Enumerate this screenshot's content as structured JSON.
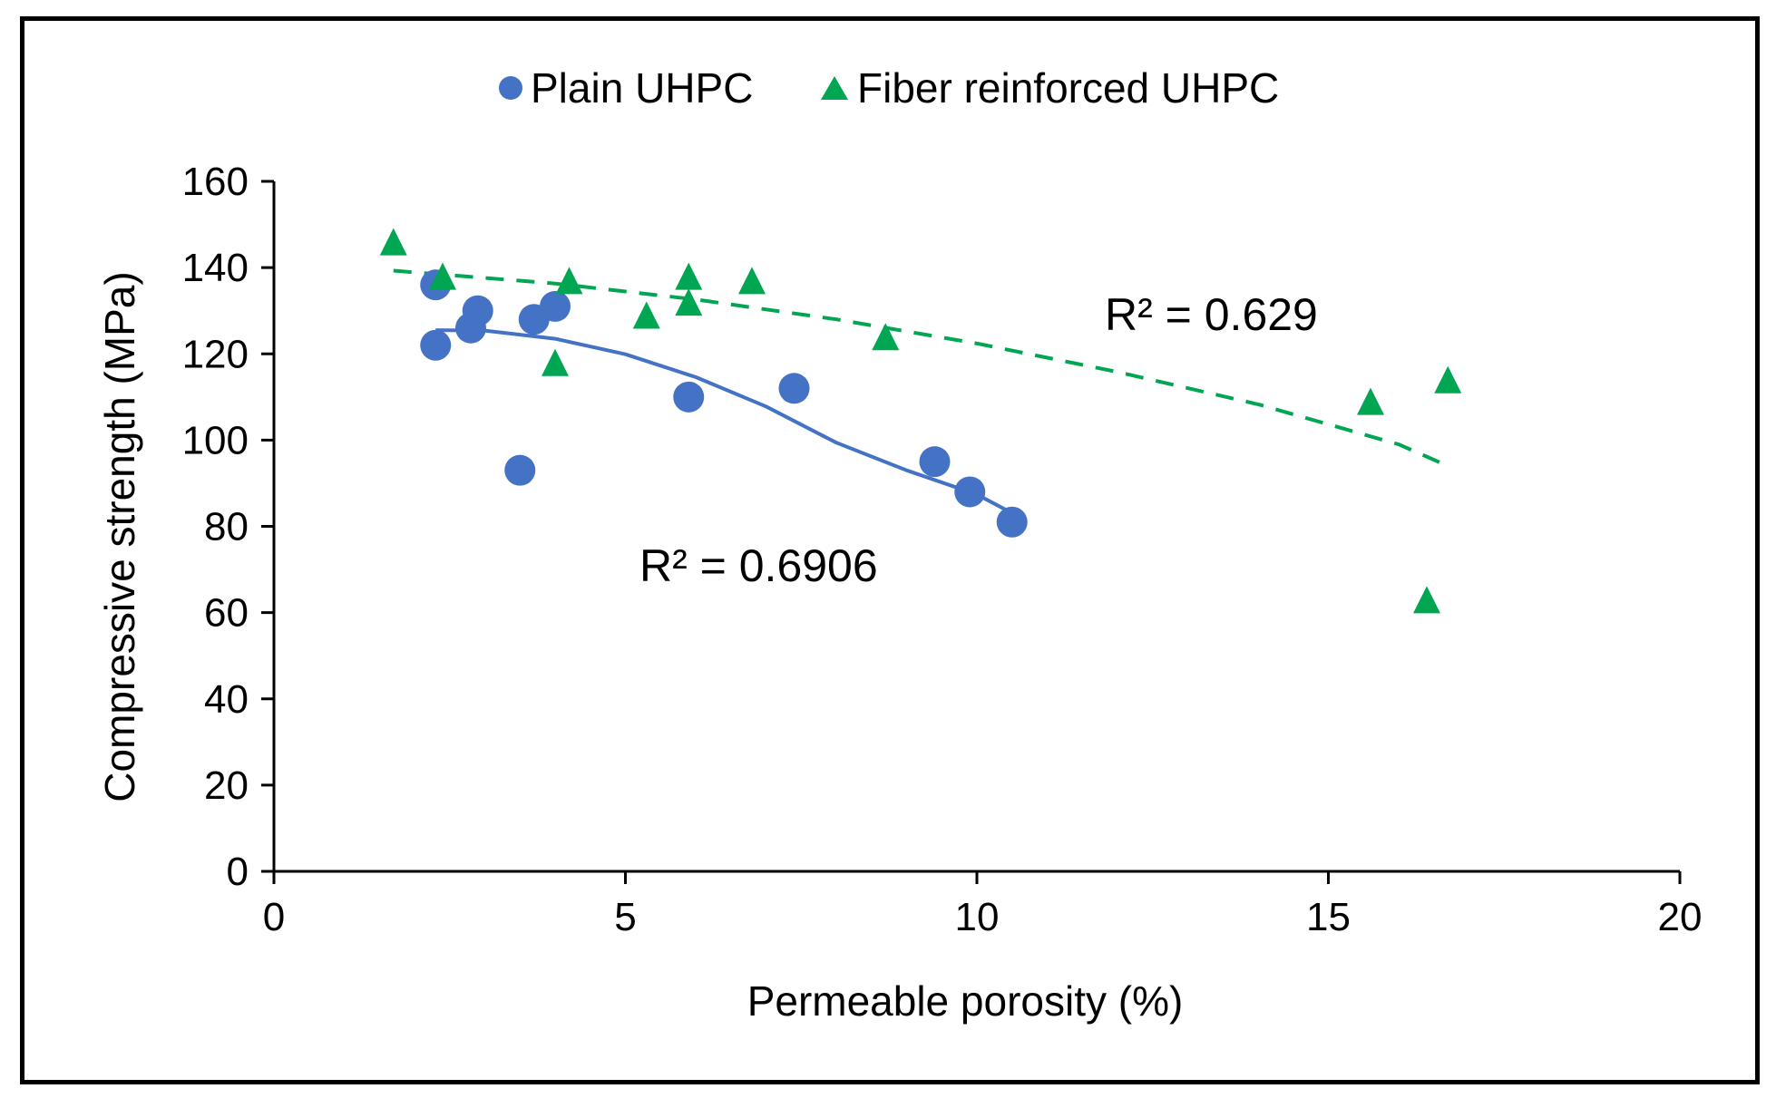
{
  "chart_data": {
    "type": "scatter",
    "xlabel": "Permeable porosity (%)",
    "ylabel": "Compressive strength (MPa)",
    "xlim": [
      0,
      20
    ],
    "ylim": [
      0,
      160
    ],
    "x_ticks": [
      0,
      5,
      10,
      15,
      20
    ],
    "y_ticks": [
      0,
      20,
      40,
      60,
      80,
      100,
      120,
      140,
      160
    ],
    "x_tick_labels": [
      "0",
      "5",
      "10",
      "15",
      "20"
    ],
    "y_tick_labels": [
      "0",
      "20",
      "40",
      "60",
      "80",
      "100",
      "120",
      "140",
      "160"
    ],
    "legend_position": "top-center",
    "series": [
      {
        "name": "Plain UHPC",
        "marker": "circle",
        "color": "#4472C4",
        "points": [
          [
            2.3,
            136
          ],
          [
            2.3,
            122
          ],
          [
            2.8,
            126
          ],
          [
            2.9,
            130
          ],
          [
            3.5,
            93
          ],
          [
            3.7,
            128
          ],
          [
            4.0,
            131
          ],
          [
            5.9,
            110
          ],
          [
            7.4,
            112
          ],
          [
            9.4,
            95
          ],
          [
            9.9,
            88
          ],
          [
            10.5,
            81
          ]
        ],
        "trendline": {
          "type": "polynomial",
          "style": "solid",
          "x": [
            2.3,
            3.0,
            4.0,
            5.0,
            6.0,
            7.0,
            8.0,
            9.0,
            10.0,
            10.6
          ],
          "y": [
            125.5,
            125.4,
            123.5,
            119.9,
            114.6,
            107.8,
            99.4,
            93.0,
            87.4,
            82.2
          ],
          "r2_label": "R² = 0.6906"
        }
      },
      {
        "name": "Fiber reinforced UHPC",
        "marker": "triangle",
        "color": "#00A651",
        "points": [
          [
            1.7,
            146
          ],
          [
            2.4,
            138
          ],
          [
            4.0,
            118
          ],
          [
            4.2,
            137
          ],
          [
            5.3,
            129
          ],
          [
            5.9,
            138
          ],
          [
            5.9,
            132
          ],
          [
            6.8,
            137
          ],
          [
            8.7,
            124
          ],
          [
            15.6,
            109
          ],
          [
            16.4,
            63
          ],
          [
            16.7,
            114
          ]
        ],
        "trendline": {
          "type": "polynomial",
          "style": "dashed",
          "x": [
            1.7,
            4.0,
            6.0,
            8.0,
            10.0,
            12.0,
            14.0,
            16.0,
            16.7
          ],
          "y": [
            139.3,
            136.3,
            132.6,
            128.0,
            122.4,
            115.8,
            108.3,
            99.0,
            94.0
          ],
          "r2_label": "R² = 0.629"
        }
      }
    ]
  }
}
